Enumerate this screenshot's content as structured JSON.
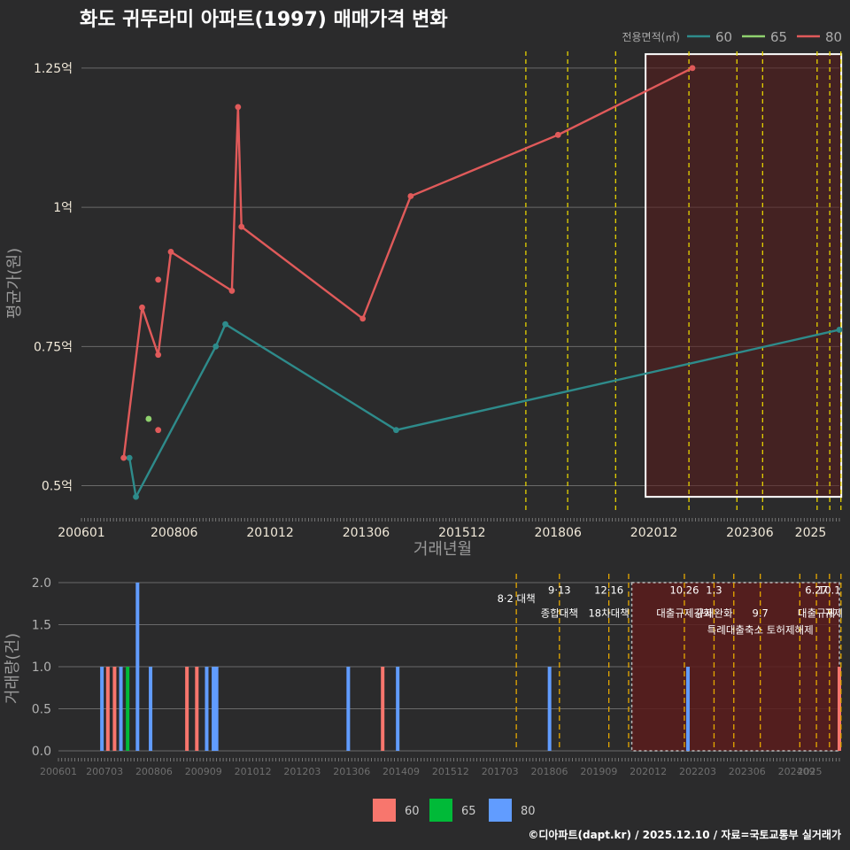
{
  "title": "화도 귀뚜라미 아파트(1997) 매매가격 변화",
  "credit": "©디아파트(dapt.kr) / 2025.12.10 / 자료=국토교통부 실거래가",
  "colors": {
    "background": "#2b2b2c",
    "series_60": "#2e8b8b",
    "series_65": "#8fd16e",
    "series_80": "#e05a5a",
    "bar_60": "#f8766d",
    "bar_65": "#00ba38",
    "bar_80": "#619cff",
    "policy_line": "#e6d200",
    "policy_line_bottom": "#e6a800",
    "highlight_fill": "#5a1c1c",
    "grid": "#6a6a6a"
  },
  "chart_data": [
    {
      "type": "line",
      "title": "화도 귀뚜라미 아파트(1997) 매매가격 변화",
      "xlabel": "거래년월",
      "ylabel": "평균가(원)",
      "legend_title": "전용면적(㎡)",
      "legend_position": "top-right",
      "xlim": [
        2006.0,
        2025.75
      ],
      "ylim": [
        0.45,
        1.28
      ],
      "x_ticks": [
        {
          "value": 2006.0,
          "label": "200601"
        },
        {
          "value": 2008.417,
          "label": "200806"
        },
        {
          "value": 2010.917,
          "label": "201012"
        },
        {
          "value": 2013.417,
          "label": "201306"
        },
        {
          "value": 2015.917,
          "label": "201512"
        },
        {
          "value": 2018.417,
          "label": "201806"
        },
        {
          "value": 2020.917,
          "label": "202012"
        },
        {
          "value": 2023.417,
          "label": "202306"
        },
        {
          "value": 2025.0,
          "label": "2025"
        }
      ],
      "y_ticks": [
        {
          "value": 0.5,
          "label": "0.5억"
        },
        {
          "value": 0.75,
          "label": "0.75억"
        },
        {
          "value": 1.0,
          "label": "1억"
        },
        {
          "value": 1.25,
          "label": "1.25억"
        }
      ],
      "series": [
        {
          "name": "60",
          "x": [
            2007.25,
            2007.42,
            2009.5,
            2009.75,
            2014.2,
            2025.75
          ],
          "y": [
            0.55,
            0.48,
            0.75,
            0.79,
            0.6,
            0.78
          ]
        },
        {
          "name": "65",
          "x": [
            2007.75
          ],
          "y": [
            0.62
          ]
        },
        {
          "name": "80",
          "x": [
            2007.1,
            2007.58,
            2008.0,
            2008.33,
            2009.92,
            2010.08,
            2010.17,
            2013.33,
            2014.58,
            2018.42,
            2021.92
          ],
          "y": [
            0.55,
            0.82,
            0.735,
            0.92,
            0.85,
            1.18,
            0.965,
            0.8,
            1.02,
            1.13,
            1.25
          ]
        },
        {
          "name": "80-extra",
          "x": [
            2008.0,
            2008.0
          ],
          "y": [
            0.87,
            0.6
          ]
        }
      ],
      "policy_lines": [
        2017.58,
        2018.67,
        2019.92,
        2021.83,
        2023.08,
        2023.75,
        2025.17,
        2025.5,
        2025.79
      ],
      "highlight_range": {
        "x": [
          2020.7,
          2025.8
        ],
        "y": [
          0.48,
          1.275
        ]
      }
    },
    {
      "type": "bar",
      "xlabel": "",
      "ylabel": "거래량(건)",
      "legend_position": "bottom",
      "xlim": [
        2006.0,
        2025.75
      ],
      "ylim": [
        0,
        2.0
      ],
      "legend": [
        "60",
        "65",
        "80"
      ],
      "x_ticks": [
        {
          "value": 2006.0,
          "label": "200601"
        },
        {
          "value": 2007.167,
          "label": "200703"
        },
        {
          "value": 2008.417,
          "label": "200806"
        },
        {
          "value": 2009.667,
          "label": "200909"
        },
        {
          "value": 2010.917,
          "label": "201012"
        },
        {
          "value": 2012.167,
          "label": "201203"
        },
        {
          "value": 2013.417,
          "label": "201306"
        },
        {
          "value": 2014.667,
          "label": "201409"
        },
        {
          "value": 2015.917,
          "label": "201512"
        },
        {
          "value": 2017.167,
          "label": "201703"
        },
        {
          "value": 2018.417,
          "label": "201806"
        },
        {
          "value": 2019.667,
          "label": "201909"
        },
        {
          "value": 2020.917,
          "label": "202012"
        },
        {
          "value": 2022.167,
          "label": "202203"
        },
        {
          "value": 2023.417,
          "label": "202306"
        },
        {
          "value": 2024.667,
          "label": "202409"
        },
        {
          "value": 2025.0,
          "label": "2025"
        }
      ],
      "y_ticks": [
        {
          "value": 0,
          "label": "0.0"
        },
        {
          "value": 0.5,
          "label": "0.5"
        },
        {
          "value": 1.0,
          "label": "1.0"
        },
        {
          "value": 1.5,
          "label": "1.5"
        },
        {
          "value": 2.0,
          "label": "2.0"
        }
      ],
      "bars": [
        {
          "x": 2007.1,
          "value": 1,
          "series": "80"
        },
        {
          "x": 2007.25,
          "value": 1,
          "series": "60"
        },
        {
          "x": 2007.42,
          "value": 1,
          "series": "60"
        },
        {
          "x": 2007.58,
          "value": 1,
          "series": "80"
        },
        {
          "x": 2007.75,
          "value": 1,
          "series": "65"
        },
        {
          "x": 2008.0,
          "value": 2,
          "series": "80"
        },
        {
          "x": 2008.33,
          "value": 1,
          "series": "80"
        },
        {
          "x": 2009.25,
          "value": 1,
          "series": "60"
        },
        {
          "x": 2009.5,
          "value": 1,
          "series": "60"
        },
        {
          "x": 2009.75,
          "value": 1,
          "series": "80"
        },
        {
          "x": 2009.92,
          "value": 1,
          "series": "80"
        },
        {
          "x": 2010.0,
          "value": 1,
          "series": "80"
        },
        {
          "x": 2013.33,
          "value": 1,
          "series": "80"
        },
        {
          "x": 2014.2,
          "value": 1,
          "series": "60"
        },
        {
          "x": 2014.58,
          "value": 1,
          "series": "80"
        },
        {
          "x": 2018.42,
          "value": 1,
          "series": "80"
        },
        {
          "x": 2021.92,
          "value": 1,
          "series": "80"
        },
        {
          "x": 2025.75,
          "value": 1,
          "series": "60"
        }
      ],
      "policy_lines": [
        2017.58,
        2018.67,
        2019.92,
        2020.42,
        2021.83,
        2022.58,
        2023.08,
        2023.75,
        2024.75,
        2025.17,
        2025.5,
        2025.79
      ],
      "highlight_range": {
        "x": [
          2020.5,
          2025.75
        ],
        "y": [
          0,
          2.0
        ]
      },
      "annotations": [
        {
          "x": 2017.58,
          "y": 1.82,
          "text": "8·2 대책"
        },
        {
          "x": 2018.67,
          "y": 1.92,
          "text": "9·13"
        },
        {
          "x": 2018.67,
          "y": 1.65,
          "text": "종합대책"
        },
        {
          "x": 2019.92,
          "y": 1.92,
          "text": "12·16"
        },
        {
          "x": 2019.92,
          "y": 1.65,
          "text": "18차대책"
        },
        {
          "x": 2021.83,
          "y": 1.92,
          "text": "10.26"
        },
        {
          "x": 2021.83,
          "y": 1.65,
          "text": "대출규제강화"
        },
        {
          "x": 2022.58,
          "y": 1.92,
          "text": "1.3"
        },
        {
          "x": 2022.58,
          "y": 1.65,
          "text": "규제완화"
        },
        {
          "x": 2023.75,
          "y": 1.65,
          "text": "9.7"
        },
        {
          "x": 2023.75,
          "y": 1.45,
          "text": "특례대출축소 토허제해제"
        },
        {
          "x": 2025.17,
          "y": 1.92,
          "text": "6.27"
        },
        {
          "x": 2025.5,
          "y": 1.92,
          "text": "10.1"
        },
        {
          "x": 2025.17,
          "y": 1.65,
          "text": "대출규제"
        },
        {
          "x": 2025.6,
          "y": 1.65,
          "text": "규제"
        }
      ]
    }
  ]
}
